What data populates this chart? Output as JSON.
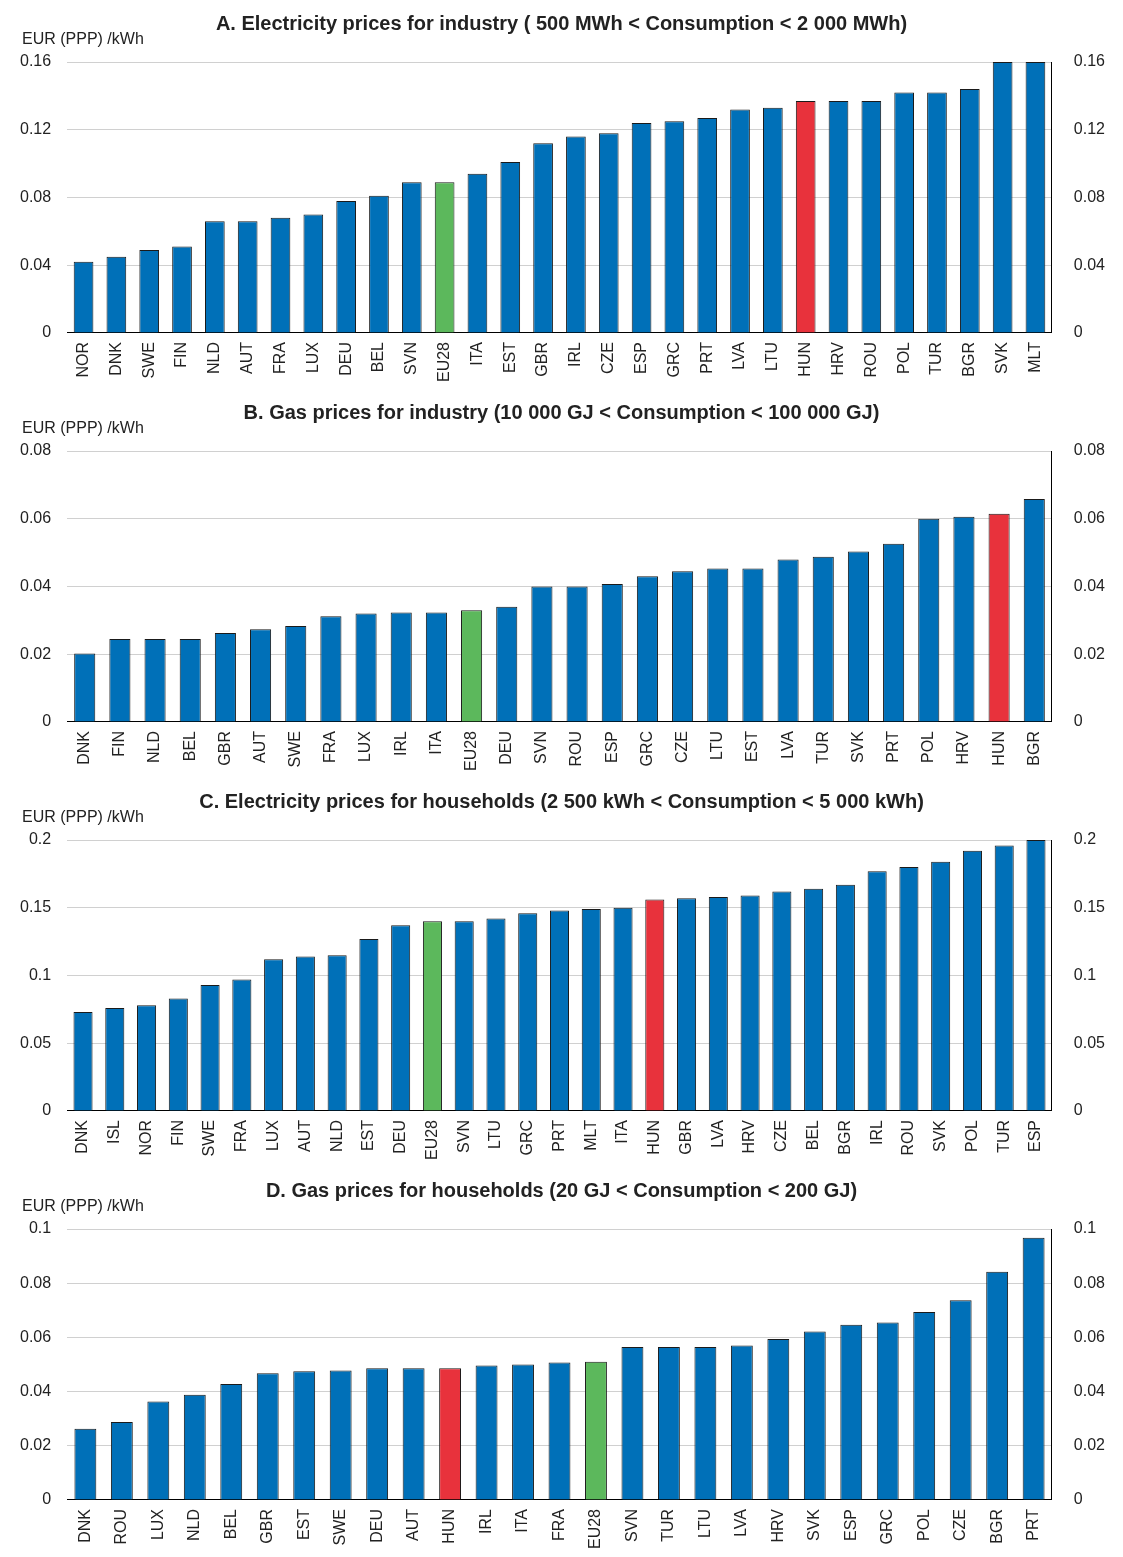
{
  "chart_data": [
    {
      "type": "bar",
      "title": "A. Electricity prices for industry ( 500 MWh < Consumption < 2 000 MWh)",
      "ylabel": "EUR (PPP) /kWh",
      "categories": [
        "NOR",
        "DNK",
        "SWE",
        "FIN",
        "NLD",
        "AUT",
        "FRA",
        "LUX",
        "DEU",
        "BEL",
        "SVN",
        "EU28",
        "ITA",
        "EST",
        "GBR",
        "IRL",
        "CZE",
        "ESP",
        "GRC",
        "PRT",
        "LVA",
        "LTU",
        "HUN",
        "HRV",
        "ROU",
        "POL",
        "TUR",
        "BGR",
        "SVK",
        "MLT"
      ],
      "values": [
        0.042,
        0.045,
        0.049,
        0.051,
        0.066,
        0.066,
        0.068,
        0.07,
        0.078,
        0.081,
        0.089,
        0.089,
        0.094,
        0.101,
        0.112,
        0.116,
        0.118,
        0.124,
        0.125,
        0.127,
        0.132,
        0.133,
        0.137,
        0.137,
        0.137,
        0.142,
        0.142,
        0.144,
        0.16,
        0.16
      ],
      "colors": [
        "#0070b8",
        "#0070b8",
        "#0070b8",
        "#0070b8",
        "#0070b8",
        "#0070b8",
        "#0070b8",
        "#0070b8",
        "#0070b8",
        "#0070b8",
        "#0070b8",
        "#5cb85c",
        "#0070b8",
        "#0070b8",
        "#0070b8",
        "#0070b8",
        "#0070b8",
        "#0070b8",
        "#0070b8",
        "#0070b8",
        "#0070b8",
        "#0070b8",
        "#e8323c",
        "#0070b8",
        "#0070b8",
        "#0070b8",
        "#0070b8",
        "#0070b8",
        "#0070b8",
        "#0070b8"
      ],
      "ylim": [
        0,
        0.16
      ],
      "yticks": [
        0,
        0.04,
        0.08,
        0.12,
        0.16
      ],
      "y2lim": [
        0,
        0.16
      ],
      "y2ticks": [
        0,
        0.04,
        0.08,
        0.12,
        0.16
      ],
      "grid": "y",
      "legend": false
    },
    {
      "type": "bar",
      "title": "B. Gas prices for industry (10 000 GJ < Consumption < 100 000 GJ)",
      "ylabel": "EUR (PPP) /kWh",
      "categories": [
        "DNK",
        "FIN",
        "NLD",
        "BEL",
        "GBR",
        "AUT",
        "SWE",
        "FRA",
        "LUX",
        "IRL",
        "ITA",
        "EU28",
        "DEU",
        "SVN",
        "ROU",
        "ESP",
        "GRC",
        "CZE",
        "LTU",
        "EST",
        "LVA",
        "TUR",
        "SVK",
        "PRT",
        "POL",
        "HRV",
        "HUN",
        "BGR"
      ],
      "values": [
        0.0202,
        0.0245,
        0.0245,
        0.0245,
        0.0263,
        0.0274,
        0.0283,
        0.0312,
        0.032,
        0.0323,
        0.0323,
        0.033,
        0.034,
        0.04,
        0.04,
        0.0407,
        0.043,
        0.0445,
        0.0453,
        0.0453,
        0.048,
        0.0488,
        0.0503,
        0.0526,
        0.06,
        0.0606,
        0.0615,
        0.0658
      ],
      "colors": [
        "#0070b8",
        "#0070b8",
        "#0070b8",
        "#0070b8",
        "#0070b8",
        "#0070b8",
        "#0070b8",
        "#0070b8",
        "#0070b8",
        "#0070b8",
        "#0070b8",
        "#5cb85c",
        "#0070b8",
        "#0070b8",
        "#0070b8",
        "#0070b8",
        "#0070b8",
        "#0070b8",
        "#0070b8",
        "#0070b8",
        "#0070b8",
        "#0070b8",
        "#0070b8",
        "#0070b8",
        "#0070b8",
        "#0070b8",
        "#e8323c",
        "#0070b8"
      ],
      "ylim": [
        0,
        0.08
      ],
      "yticks": [
        0,
        0.02,
        0.04,
        0.06,
        0.08
      ],
      "y2lim": [
        0,
        0.08
      ],
      "y2ticks": [
        0,
        0.02,
        0.04,
        0.06,
        0.08
      ],
      "grid": "y",
      "legend": false
    },
    {
      "type": "bar",
      "title": "C. Electricity prices for households (2 500 kWh < Consumption < 5 000 kWh)",
      "ylabel": "EUR (PPP) /kWh",
      "categories": [
        "DNK",
        "ISL",
        "NOR",
        "FIN",
        "SWE",
        "FRA",
        "LUX",
        "AUT",
        "NLD",
        "EST",
        "DEU",
        "EU28",
        "SVN",
        "LTU",
        "GRC",
        "PRT",
        "MLT",
        "ITA",
        "HUN",
        "GBR",
        "LVA",
        "HRV",
        "CZE",
        "BEL",
        "BGR",
        "IRL",
        "ROU",
        "SVK",
        "POL",
        "TUR",
        "ESP"
      ],
      "values": [
        0.073,
        0.076,
        0.078,
        0.083,
        0.093,
        0.097,
        0.112,
        0.114,
        0.115,
        0.127,
        0.137,
        0.14,
        0.14,
        0.142,
        0.146,
        0.148,
        0.149,
        0.15,
        0.156,
        0.157,
        0.158,
        0.159,
        0.162,
        0.164,
        0.167,
        0.177,
        0.18,
        0.184,
        0.192,
        0.196,
        0.2
      ],
      "colors": [
        "#0070b8",
        "#0070b8",
        "#0070b8",
        "#0070b8",
        "#0070b8",
        "#0070b8",
        "#0070b8",
        "#0070b8",
        "#0070b8",
        "#0070b8",
        "#0070b8",
        "#5cb85c",
        "#0070b8",
        "#0070b8",
        "#0070b8",
        "#0070b8",
        "#0070b8",
        "#0070b8",
        "#e8323c",
        "#0070b8",
        "#0070b8",
        "#0070b8",
        "#0070b8",
        "#0070b8",
        "#0070b8",
        "#0070b8",
        "#0070b8",
        "#0070b8",
        "#0070b8",
        "#0070b8",
        "#0070b8"
      ],
      "ylim": [
        0,
        0.2
      ],
      "yticks": [
        0,
        0.05,
        0.1,
        0.15,
        0.2
      ],
      "y2lim": [
        0,
        0.2
      ],
      "y2ticks": [
        0,
        0.05,
        0.1,
        0.15,
        0.2
      ],
      "grid": "y",
      "legend": false
    },
    {
      "type": "bar",
      "title": "D. Gas prices for households (20 GJ < Consumption < 200 GJ)",
      "ylabel": "EUR (PPP) /kWh",
      "categories": [
        "DNK",
        "ROU",
        "LUX",
        "NLD",
        "BEL",
        "GBR",
        "EST",
        "SWE",
        "DEU",
        "AUT",
        "HUN",
        "IRL",
        "ITA",
        "FRA",
        "EU28",
        "SVN",
        "TUR",
        "LTU",
        "LVA",
        "HRV",
        "SVK",
        "ESP",
        "GRC",
        "POL",
        "CZE",
        "BGR",
        "PRT"
      ],
      "values": [
        0.0263,
        0.0288,
        0.0363,
        0.0388,
        0.0428,
        0.0468,
        0.0475,
        0.0478,
        0.0486,
        0.0486,
        0.0486,
        0.0496,
        0.05,
        0.0507,
        0.051,
        0.0565,
        0.0565,
        0.0565,
        0.057,
        0.0594,
        0.0622,
        0.0647,
        0.0655,
        0.0694,
        0.0737,
        0.0842,
        0.0968
      ],
      "colors": [
        "#0070b8",
        "#0070b8",
        "#0070b8",
        "#0070b8",
        "#0070b8",
        "#0070b8",
        "#0070b8",
        "#0070b8",
        "#0070b8",
        "#0070b8",
        "#e8323c",
        "#0070b8",
        "#0070b8",
        "#0070b8",
        "#5cb85c",
        "#0070b8",
        "#0070b8",
        "#0070b8",
        "#0070b8",
        "#0070b8",
        "#0070b8",
        "#0070b8",
        "#0070b8",
        "#0070b8",
        "#0070b8",
        "#0070b8",
        "#0070b8"
      ],
      "ylim": [
        0,
        0.1
      ],
      "yticks": [
        0,
        0.02,
        0.04,
        0.06,
        0.08,
        0.1
      ],
      "y2lim": [
        0,
        0.1
      ],
      "y2ticks": [
        0,
        0.02,
        0.04,
        0.06,
        0.08,
        0.1
      ],
      "grid": "y",
      "legend": false
    }
  ]
}
